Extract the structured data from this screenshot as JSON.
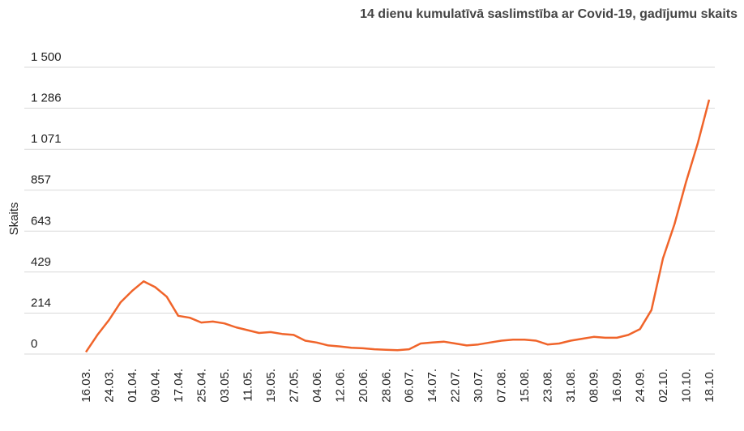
{
  "chart_data": {
    "type": "line",
    "title": "14 dienu kumulatīvā saslimstība ar Covid-19, gadījumu skaits",
    "y_label": "Skaits",
    "categories": [
      "16.03.",
      null,
      "24.03.",
      null,
      "01.04.",
      null,
      "09.04.",
      null,
      "17.04.",
      null,
      "25.04.",
      null,
      "03.05.",
      null,
      "11.05.",
      null,
      "19.05.",
      null,
      "27.05.",
      null,
      "04.06.",
      null,
      "12.06.",
      null,
      "20.06.",
      null,
      "28.06.",
      null,
      "06.07.",
      null,
      "14.07.",
      null,
      "22.07.",
      null,
      "30.07.",
      null,
      "07.08.",
      null,
      "15.08.",
      null,
      "23.08.",
      null,
      "31.08.",
      null,
      "08.09.",
      null,
      "16.09.",
      null,
      "24.09.",
      null,
      "02.10.",
      null,
      "10.10.",
      null,
      "18.10."
    ],
    "series": [
      {
        "name": "Skaits",
        "color": "#f0642a",
        "values": [
          10,
          100,
          178,
          270,
          330,
          380,
          350,
          300,
          200,
          190,
          165,
          170,
          160,
          140,
          125,
          110,
          115,
          105,
          100,
          70,
          60,
          45,
          40,
          33,
          30,
          25,
          22,
          20,
          25,
          55,
          60,
          65,
          55,
          45,
          50,
          60,
          70,
          75,
          75,
          70,
          50,
          55,
          70,
          80,
          90,
          85,
          85,
          100,
          130,
          230,
          500,
          680,
          900,
          1100,
          1330
        ]
      }
    ],
    "ylim": [
      0,
      1500
    ],
    "yticks": [
      0,
      214,
      429,
      643,
      857,
      {
        "value": 1071,
        "label": "1 071"
      },
      {
        "value": 1286,
        "label": "1 286"
      },
      {
        "value": 1500,
        "label": "1 500"
      }
    ],
    "grid": true
  }
}
